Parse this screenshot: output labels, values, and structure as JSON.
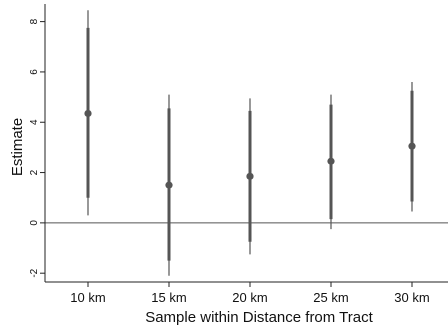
{
  "chart_data": {
    "type": "scatter",
    "title": "",
    "xlabel": "Sample within Distance from Tract",
    "ylabel": "Estimate",
    "categories": [
      "10 km",
      "15 km",
      "20 km",
      "25 km",
      "30 km"
    ],
    "estimates": [
      4.35,
      1.5,
      1.85,
      2.45,
      3.05
    ],
    "ci_inner": [
      [
        1.0,
        7.75
      ],
      [
        -1.5,
        4.55
      ],
      [
        -0.75,
        4.45
      ],
      [
        0.15,
        4.7
      ],
      [
        0.85,
        5.25
      ]
    ],
    "ci_outer": [
      [
        0.3,
        8.45
      ],
      [
        -2.1,
        5.1
      ],
      [
        -1.25,
        4.95
      ],
      [
        -0.25,
        5.1
      ],
      [
        0.45,
        5.6
      ]
    ],
    "yticks": [
      -2,
      0,
      2,
      4,
      6,
      8
    ],
    "ylim": [
      -2.35,
      8.7
    ],
    "reference_line": 0,
    "grid": false,
    "colors": {
      "marker": "#555555",
      "axis": "#222222",
      "refline": "#555555"
    }
  }
}
